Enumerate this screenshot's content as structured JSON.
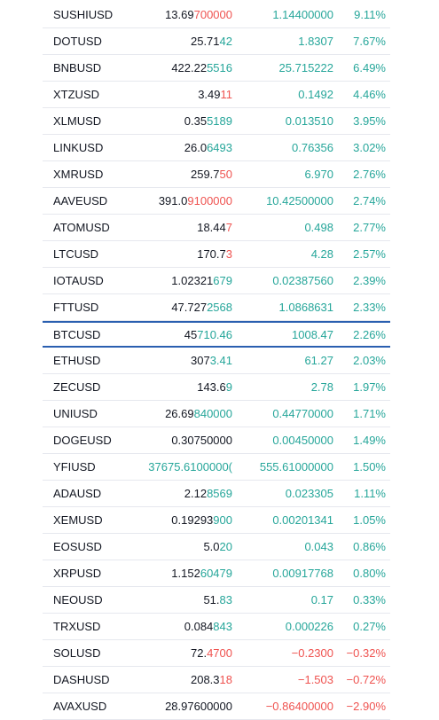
{
  "colors": {
    "up": "#26a69a",
    "down": "#ef5350",
    "text": "#131722",
    "separator": "#e6e8ee",
    "highlight_border": "#2a5fb0"
  },
  "rows": [
    {
      "symbol": "SUSHIUSD",
      "price_base": "13.69",
      "price_hi": "700000",
      "price_dir": "down",
      "change": "1.14400000",
      "percent": "9.11%",
      "dir": "up"
    },
    {
      "symbol": "DOTUSD",
      "price_base": "25.71",
      "price_hi": "42",
      "price_dir": "up",
      "change": "1.8307",
      "percent": "7.67%",
      "dir": "up"
    },
    {
      "symbol": "BNBUSD",
      "price_base": "422.22",
      "price_hi": "5516",
      "price_dir": "up",
      "change": "25.715222",
      "percent": "6.49%",
      "dir": "up"
    },
    {
      "symbol": "XTZUSD",
      "price_base": "3.49",
      "price_hi": "11",
      "price_dir": "down",
      "change": "0.1492",
      "percent": "4.46%",
      "dir": "up"
    },
    {
      "symbol": "XLMUSD",
      "price_base": "0.35",
      "price_hi": "5189",
      "price_dir": "up",
      "change": "0.013510",
      "percent": "3.95%",
      "dir": "up"
    },
    {
      "symbol": "LINKUSD",
      "price_base": "26.0",
      "price_hi": "6493",
      "price_dir": "up",
      "change": "0.76356",
      "percent": "3.02%",
      "dir": "up"
    },
    {
      "symbol": "XMRUSD",
      "price_base": "259.7",
      "price_hi": "50",
      "price_dir": "down",
      "change": "6.970",
      "percent": "2.76%",
      "dir": "up"
    },
    {
      "symbol": "AAVEUSD",
      "price_base": "391.0",
      "price_hi": "9100000",
      "price_dir": "down",
      "change": "10.42500000",
      "percent": "2.74%",
      "dir": "up"
    },
    {
      "symbol": "ATOMUSD",
      "price_base": "18.44",
      "price_hi": "7",
      "price_dir": "down",
      "change": "0.498",
      "percent": "2.77%",
      "dir": "up"
    },
    {
      "symbol": "LTCUSD",
      "price_base": "170.7",
      "price_hi": "3",
      "price_dir": "down",
      "change": "4.28",
      "percent": "2.57%",
      "dir": "up"
    },
    {
      "symbol": "IOTAUSD",
      "price_base": "1.02321",
      "price_hi": "679",
      "price_dir": "up",
      "change": "0.02387560",
      "percent": "2.39%",
      "dir": "up"
    },
    {
      "symbol": "FTTUSD",
      "price_base": "47.727",
      "price_hi": "2568",
      "price_dir": "up",
      "change": "1.0868631",
      "percent": "2.33%",
      "dir": "up"
    },
    {
      "symbol": "BTCUSD",
      "price_base": "45",
      "price_hi": "710.46",
      "price_dir": "up",
      "change": "1008.47",
      "percent": "2.26%",
      "dir": "up",
      "highlight": true
    },
    {
      "symbol": "ETHUSD",
      "price_base": "307",
      "price_hi": "3.41",
      "price_dir": "up",
      "change": "61.27",
      "percent": "2.03%",
      "dir": "up"
    },
    {
      "symbol": "ZECUSD",
      "price_base": "143.6",
      "price_hi": "9",
      "price_dir": "up",
      "change": "2.78",
      "percent": "1.97%",
      "dir": "up"
    },
    {
      "symbol": "UNIUSD",
      "price_base": "26.69",
      "price_hi": "840000",
      "price_dir": "up",
      "change": "0.44770000",
      "percent": "1.71%",
      "dir": "up"
    },
    {
      "symbol": "DOGEUSD",
      "price_base": "0.30750000",
      "price_hi": "",
      "price_dir": "up",
      "change": "0.00450000",
      "percent": "1.49%",
      "dir": "up"
    },
    {
      "symbol": "YFIUSD",
      "price_base": "",
      "price_hi": "37675.6100000(",
      "price_dir": "up",
      "change": "555.61000000",
      "percent": "1.50%",
      "dir": "up"
    },
    {
      "symbol": "ADAUSD",
      "price_base": "2.12",
      "price_hi": "8569",
      "price_dir": "up",
      "change": "0.023305",
      "percent": "1.11%",
      "dir": "up"
    },
    {
      "symbol": "XEMUSD",
      "price_base": "0.19293",
      "price_hi": "900",
      "price_dir": "up",
      "change": "0.00201341",
      "percent": "1.05%",
      "dir": "up"
    },
    {
      "symbol": "EOSUSD",
      "price_base": "5.0",
      "price_hi": "20",
      "price_dir": "up",
      "change": "0.043",
      "percent": "0.86%",
      "dir": "up"
    },
    {
      "symbol": "XRPUSD",
      "price_base": "1.152",
      "price_hi": "60479",
      "price_dir": "up",
      "change": "0.00917768",
      "percent": "0.80%",
      "dir": "up"
    },
    {
      "symbol": "NEOUSD",
      "price_base": "51.",
      "price_hi": "83",
      "price_dir": "up",
      "change": "0.17",
      "percent": "0.33%",
      "dir": "up"
    },
    {
      "symbol": "TRXUSD",
      "price_base": "0.084",
      "price_hi": "843",
      "price_dir": "up",
      "change": "0.000226",
      "percent": "0.27%",
      "dir": "up"
    },
    {
      "symbol": "SOLUSD",
      "price_base": "72.",
      "price_hi": "4700",
      "price_dir": "down",
      "change": "−0.2300",
      "percent": "−0.32%",
      "dir": "down"
    },
    {
      "symbol": "DASHUSD",
      "price_base": "208.3",
      "price_hi": "18",
      "price_dir": "down",
      "change": "−1.503",
      "percent": "−0.72%",
      "dir": "down"
    },
    {
      "symbol": "AVAXUSD",
      "price_base": "28.97600000",
      "price_hi": "",
      "price_dir": "down",
      "change": "−0.86400000",
      "percent": "−2.90%",
      "dir": "down"
    }
  ]
}
